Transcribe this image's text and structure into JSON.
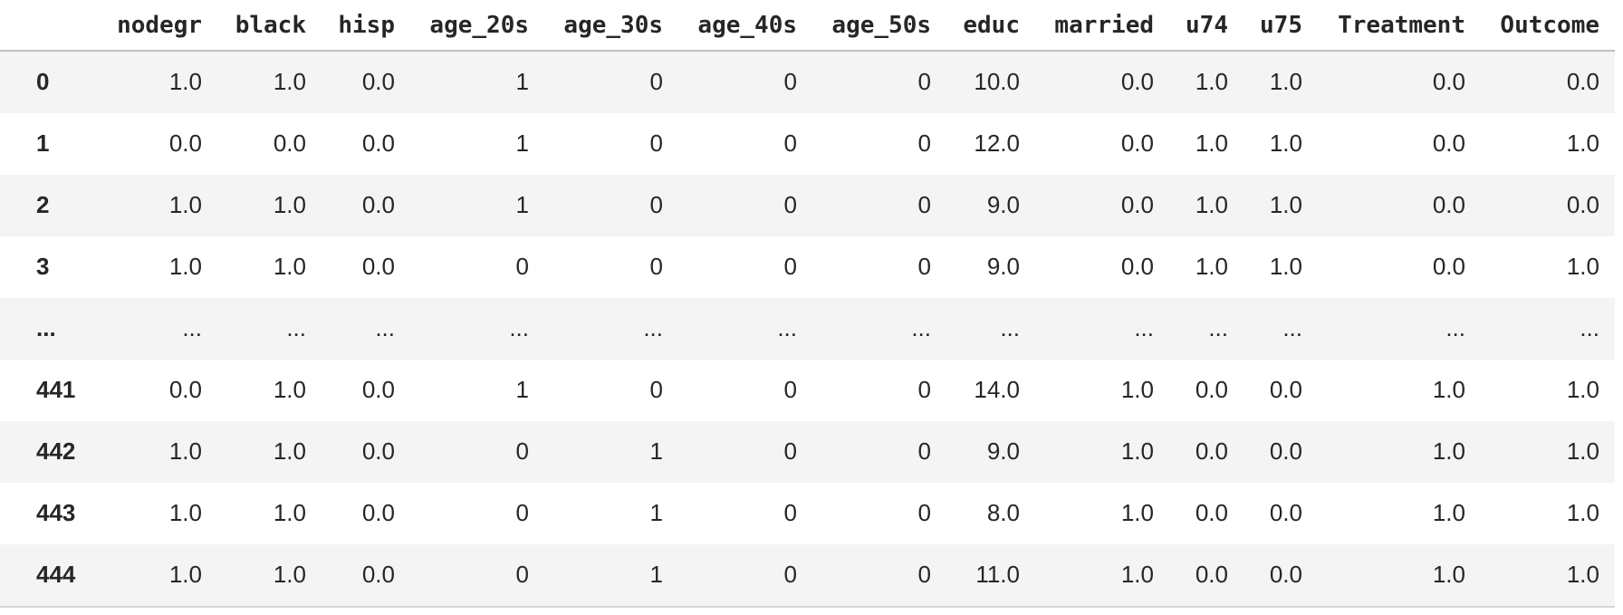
{
  "theme": {
    "stripe_bg": "#f4f4f4",
    "header_border_color": "#bfbfbf",
    "bottom_border_color": "#d6d6d6",
    "text_color": "#262626",
    "background": "#ffffff"
  },
  "table": {
    "kind": "pandas-dataframe",
    "index_header": "",
    "columns": [
      "nodegr",
      "black",
      "hisp",
      "age_20s",
      "age_30s",
      "age_40s",
      "age_50s",
      "educ",
      "married",
      "u74",
      "u75",
      "Treatment",
      "Outcome"
    ],
    "rows": [
      {
        "index": "0",
        "values": [
          "1.0",
          "1.0",
          "0.0",
          "1",
          "0",
          "0",
          "0",
          "10.0",
          "0.0",
          "1.0",
          "1.0",
          "0.0",
          "0.0"
        ]
      },
      {
        "index": "1",
        "values": [
          "0.0",
          "0.0",
          "0.0",
          "1",
          "0",
          "0",
          "0",
          "12.0",
          "0.0",
          "1.0",
          "1.0",
          "0.0",
          "1.0"
        ]
      },
      {
        "index": "2",
        "values": [
          "1.0",
          "1.0",
          "0.0",
          "1",
          "0",
          "0",
          "0",
          "9.0",
          "0.0",
          "1.0",
          "1.0",
          "0.0",
          "0.0"
        ]
      },
      {
        "index": "3",
        "values": [
          "1.0",
          "1.0",
          "0.0",
          "0",
          "0",
          "0",
          "0",
          "9.0",
          "0.0",
          "1.0",
          "1.0",
          "0.0",
          "1.0"
        ]
      },
      {
        "index": "...",
        "values": [
          "...",
          "...",
          "...",
          "...",
          "...",
          "...",
          "...",
          "...",
          "...",
          "...",
          "...",
          "...",
          "..."
        ]
      },
      {
        "index": "441",
        "values": [
          "0.0",
          "1.0",
          "0.0",
          "1",
          "0",
          "0",
          "0",
          "14.0",
          "1.0",
          "0.0",
          "0.0",
          "1.0",
          "1.0"
        ]
      },
      {
        "index": "442",
        "values": [
          "1.0",
          "1.0",
          "0.0",
          "0",
          "1",
          "0",
          "0",
          "9.0",
          "1.0",
          "0.0",
          "0.0",
          "1.0",
          "1.0"
        ]
      },
      {
        "index": "443",
        "values": [
          "1.0",
          "1.0",
          "0.0",
          "0",
          "1",
          "0",
          "0",
          "8.0",
          "1.0",
          "0.0",
          "0.0",
          "1.0",
          "1.0"
        ]
      },
      {
        "index": "444",
        "values": [
          "1.0",
          "1.0",
          "0.0",
          "0",
          "1",
          "0",
          "0",
          "11.0",
          "1.0",
          "0.0",
          "0.0",
          "1.0",
          "1.0"
        ]
      }
    ]
  }
}
